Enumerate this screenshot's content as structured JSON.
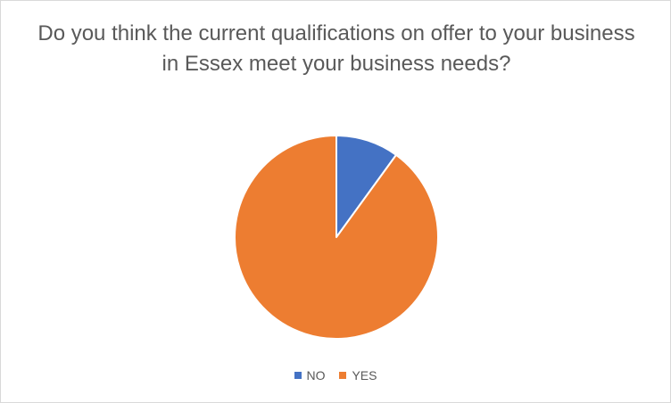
{
  "chart_data": {
    "type": "pie",
    "title": "Do you think the current qualifications on offer to your business in Essex meet your business needs?",
    "categories": [
      "NO",
      "YES"
    ],
    "values": [
      10,
      90
    ],
    "colors": [
      "#4472C4",
      "#ED7D31"
    ],
    "legend": "bottom"
  }
}
